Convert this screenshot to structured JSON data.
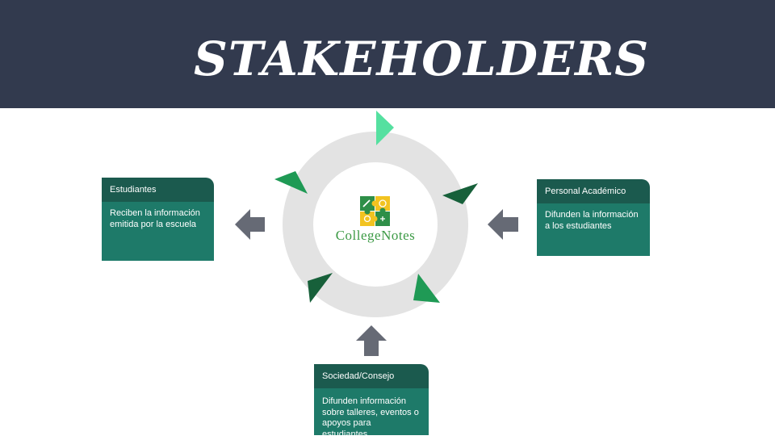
{
  "slide": {
    "title": "STAKEHOLDERS"
  },
  "logo": {
    "text": "CollegeNotes",
    "icon": "puzzle-logo-icon"
  },
  "stakeholders": [
    {
      "id": "estudiantes",
      "title": "Estudiantes",
      "lines": [
        "Reciben la información",
        "emitida por la escuela"
      ],
      "arrow_direction": "left"
    },
    {
      "id": "personal",
      "title": "Personal Académico",
      "lines": [
        "Difunden la información",
        "a los estudiantes"
      ],
      "arrow_direction": "left"
    },
    {
      "id": "sociedad",
      "title": "Sociedad/Consejo",
      "lines": [
        "Difunden información",
        "sobre talleres, eventos o",
        "apoyos para estudiantes."
      ],
      "arrow_direction": "up"
    }
  ],
  "colors": {
    "header_bg": "#323a4e",
    "card_head": "#1b5a4e",
    "card_body": "#1e7a69",
    "ring": "#e3e3e3",
    "arrow_gray": "#666a75",
    "marker_light": "#55e0a0",
    "marker_mid": "#1f9a55",
    "marker_dark": "#17603a",
    "brand_text": "#3c9a45"
  }
}
